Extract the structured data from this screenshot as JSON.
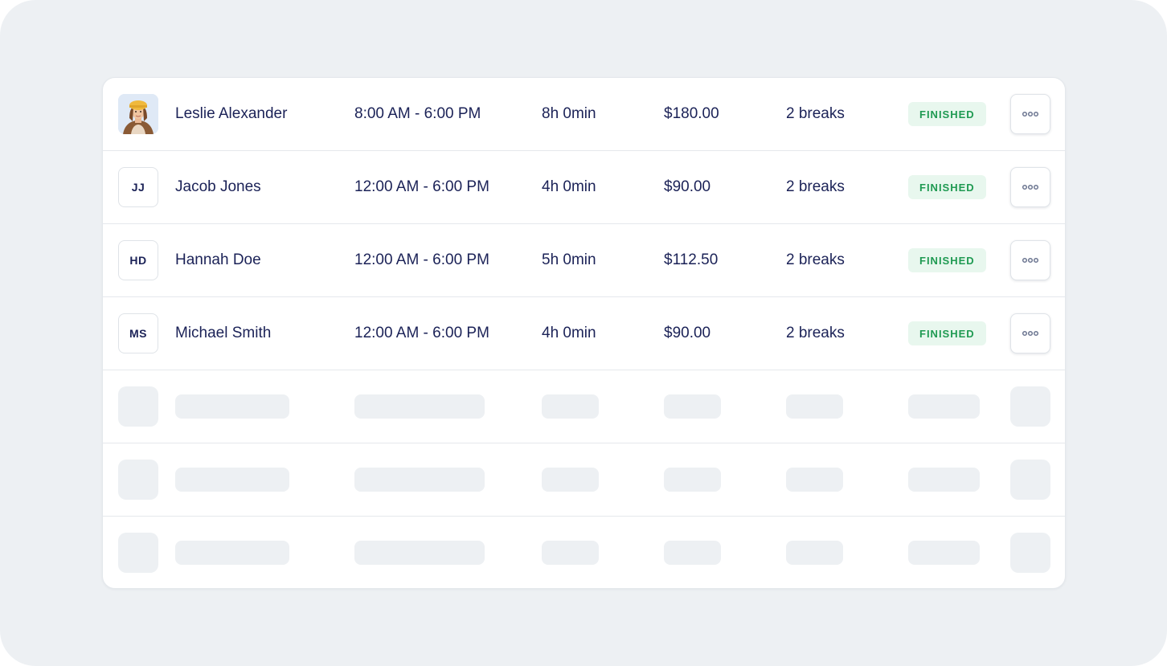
{
  "rows": [
    {
      "avatar_initials": "",
      "avatar_icon": "user-photo",
      "name": "Leslie Alexander",
      "time": "8:00 AM - 6:00 PM",
      "duration": "8h 0min",
      "pay": "$180.00",
      "breaks": "2 breaks",
      "status": "FINISHED"
    },
    {
      "avatar_initials": "JJ",
      "name": "Jacob Jones",
      "time": "12:00 AM - 6:00 PM",
      "duration": "4h 0min",
      "pay": "$90.00",
      "breaks": "2 breaks",
      "status": "FINISHED"
    },
    {
      "avatar_initials": "HD",
      "name": "Hannah Doe",
      "time": "12:00 AM - 6:00 PM",
      "duration": "5h 0min",
      "pay": "$112.50",
      "breaks": "2 breaks",
      "status": "FINISHED"
    },
    {
      "avatar_initials": "MS",
      "name": "Michael Smith",
      "time": "12:00 AM - 6:00 PM",
      "duration": "4h 0min",
      "pay": "$90.00",
      "breaks": "2 breaks",
      "status": "FINISHED"
    }
  ],
  "colors": {
    "background": "#edf0f3",
    "text": "#1b2257",
    "status_bg": "#e8f7ee",
    "status_text": "#1f9a52",
    "skeleton": "#edf0f3"
  },
  "icons": {
    "more": "more-horizontal-icon"
  }
}
